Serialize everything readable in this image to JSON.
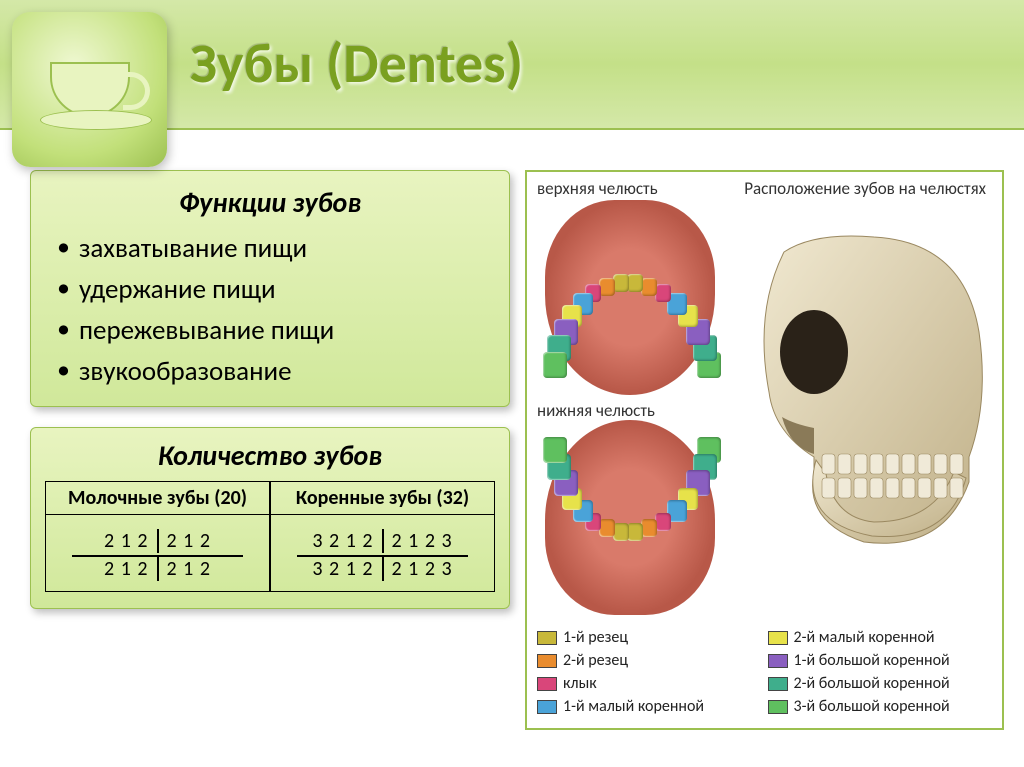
{
  "title": "Зубы (Dentes)",
  "functions": {
    "heading": "Функции зубов",
    "items": [
      "захватывание пищи",
      "удержание пищи",
      "пережевывание пищи",
      "звукообразование"
    ]
  },
  "count": {
    "heading": "Количество зубов",
    "milk": {
      "header": "Молочные зубы (20)",
      "formula": {
        "UL": "2 1 2",
        "UR": "2 1 2",
        "LL": "2 1 2",
        "LR": "2 1 2"
      }
    },
    "permanent": {
      "header": "Коренные зубы (32)",
      "formula": {
        "UL": "3 2 1 2",
        "UR": "2 1 2 3",
        "LL": "3 2 1 2",
        "LR": "2 1 2 3"
      }
    }
  },
  "diagram": {
    "title": "Расположение зубов на челюстях",
    "upper_label": "верхняя челюсть",
    "lower_label": "нижняя челюсть",
    "tooth_types": [
      {
        "key": "incisor1",
        "label": "1-й резец",
        "color": "#c8b83a"
      },
      {
        "key": "incisor2",
        "label": "2-й резец",
        "color": "#e98c2e"
      },
      {
        "key": "canine",
        "label": "клык",
        "color": "#d9467a"
      },
      {
        "key": "premolar1",
        "label": "1-й малый коренной",
        "color": "#4aa3d8"
      },
      {
        "key": "premolar2",
        "label": "2-й малый коренной",
        "color": "#e7e24a"
      },
      {
        "key": "molar1",
        "label": "1-й большой коренной",
        "color": "#8a5fc0"
      },
      {
        "key": "molar2",
        "label": "2-й большой коренной",
        "color": "#3fae8c"
      },
      {
        "key": "molar3",
        "label": "3-й большой коренной",
        "color": "#5fc05f"
      }
    ],
    "arch_sequence": [
      "molar3",
      "molar2",
      "molar1",
      "premolar2",
      "premolar1",
      "canine",
      "incisor2",
      "incisor1",
      "incisor1",
      "incisor2",
      "canine",
      "premolar1",
      "premolar2",
      "molar1",
      "molar2",
      "molar3"
    ],
    "skull_colors": {
      "bone": "#e8dcc0",
      "bone_shade": "#c8b890",
      "tooth": "#f0ead8"
    }
  },
  "style": {
    "accent_green": "#9cc050",
    "panel_grad_top": "#e8f4c0",
    "panel_grad_bot": "#d0e89a",
    "title_color": "#7aa020"
  }
}
